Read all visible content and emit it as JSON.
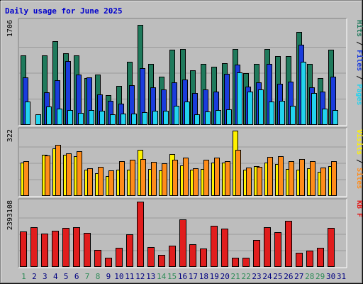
{
  "chart_data": {
    "type": "bar",
    "title": "Daily usage for June 2025",
    "days": [
      "1",
      "2",
      "3",
      "4",
      "5",
      "6",
      "7",
      "8",
      "9",
      "10",
      "11",
      "12",
      "13",
      "14",
      "15",
      "16",
      "17",
      "18",
      "19",
      "20",
      "21",
      "22",
      "23",
      "24",
      "25",
      "26",
      "27",
      "28",
      "29",
      "30",
      "31"
    ],
    "weekend_days": [
      1,
      7,
      8,
      14,
      15,
      21,
      22,
      28,
      29
    ],
    "panels": [
      {
        "name": "hits-files-pages",
        "max_label": "1706",
        "max": 1706,
        "right_label": [
          "Pages",
          "/",
          "Files",
          "/",
          "Hits"
        ],
        "series": [
          {
            "name": "Hits",
            "color": "#1f7a5c",
            "values": [
              1140,
              0,
              1140,
              1380,
              1180,
              1140,
              770,
              830,
              490,
              640,
              1040,
              1650,
              1000,
              790,
              1240,
              1250,
              900,
              1000,
              960,
              1020,
              1250,
              850,
              1010,
              1250,
              1130,
              1130,
              1530,
              1000,
              770,
              1240,
              0
            ]
          },
          {
            "name": "Files",
            "color": "#1a3cdc",
            "values": [
              780,
              0,
              540,
              740,
              1050,
              830,
              780,
              500,
              400,
              350,
              650,
              940,
              620,
              590,
              700,
              750,
              530,
              590,
              550,
              840,
              990,
              630,
              700,
              1010,
              680,
              710,
              1320,
              620,
              550,
              790,
              0
            ]
          },
          {
            "name": "Pages",
            "color": "#22d3ee",
            "values": [
              380,
              180,
              300,
              270,
              240,
              200,
              250,
              230,
              180,
              190,
              190,
              210,
              230,
              230,
              310,
              380,
              180,
              220,
              240,
              260,
              870,
              550,
              580,
              380,
              400,
              320,
              1040,
              520,
              270,
              240,
              0
            ]
          }
        ]
      },
      {
        "name": "visits-sites",
        "max_label": "322",
        "max": 322,
        "right_label": [
          "Sites",
          "/",
          "Visits"
        ],
        "series": [
          {
            "name": "Visits",
            "color": "#fff200",
            "values": [
              164,
              0,
              204,
              236,
              202,
              195,
              129,
              111,
              99,
              128,
              130,
              226,
              133,
              125,
              207,
              152,
              131,
              134,
              165,
              164,
              322,
              129,
              148,
              163,
              158,
              133,
              130,
              137,
              120,
              148,
              0
            ]
          },
          {
            "name": "Sites",
            "color": "#ff8c1a",
            "values": [
              172,
              0,
              200,
              253,
              210,
              222,
              135,
              144,
              126,
              172,
              177,
              183,
              167,
              162,
              180,
              190,
              136,
              178,
              189,
              171,
              228,
              139,
              143,
              191,
              197,
              170,
              182,
              172,
              139,
              173,
              0
            ]
          }
        ]
      },
      {
        "name": "kb-f",
        "max_label": "2393108",
        "max": 2393108,
        "right_label": [
          "KB F"
        ],
        "series": [
          {
            "name": "KB F",
            "color": "#e11d1d",
            "values": [
              1290000,
              1450000,
              1230000,
              1320000,
              1420000,
              1450000,
              1250000,
              630000,
              340000,
              690000,
              1190000,
              2393108,
              730000,
              440000,
              770000,
              1730000,
              820000,
              670000,
              1510000,
              1410000,
              330000,
              350000,
              980000,
              1460000,
              1280000,
              1690000,
              520000,
              590000,
              690000,
              1420000,
              0
            ]
          }
        ]
      }
    ],
    "colors": {
      "background": "#c0c0c0",
      "plot_background": "#bfbfbf",
      "title": "#0000cc",
      "weekend_label": "#2e8b57",
      "weekday_label": "#000080"
    }
  }
}
